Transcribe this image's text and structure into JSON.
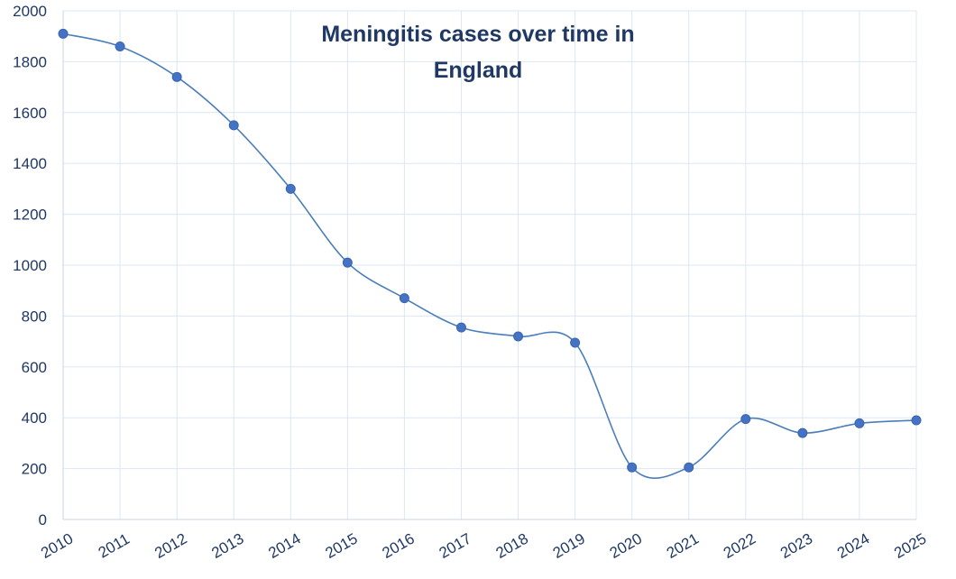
{
  "chart_data": {
    "type": "line",
    "title_lines": [
      "Meningitis cases over time in",
      "England"
    ],
    "categories": [
      "2010",
      "2011",
      "2012",
      "2013",
      "2014",
      "2015",
      "2016",
      "2017",
      "2018",
      "2019",
      "2020",
      "2021",
      "2022",
      "2023",
      "2024",
      "2025"
    ],
    "series": [
      {
        "values": [
          1910,
          1860,
          1740,
          1550,
          1300,
          1010,
          870,
          755,
          720,
          695,
          205,
          205,
          395,
          340,
          378,
          390
        ]
      }
    ],
    "xlabel": "",
    "ylabel": "",
    "ylim": [
      0,
      2000
    ],
    "yticks": [
      "0",
      "200",
      "400",
      "600",
      "800",
      "1000",
      "1200",
      "1400",
      "1600",
      "1800",
      "2000"
    ],
    "grid": true,
    "legend": "none",
    "colors": {
      "line": "#4a7ebb",
      "marker": "#4472c4",
      "text": "#1f3864",
      "grid": "#dbe7f4"
    }
  }
}
